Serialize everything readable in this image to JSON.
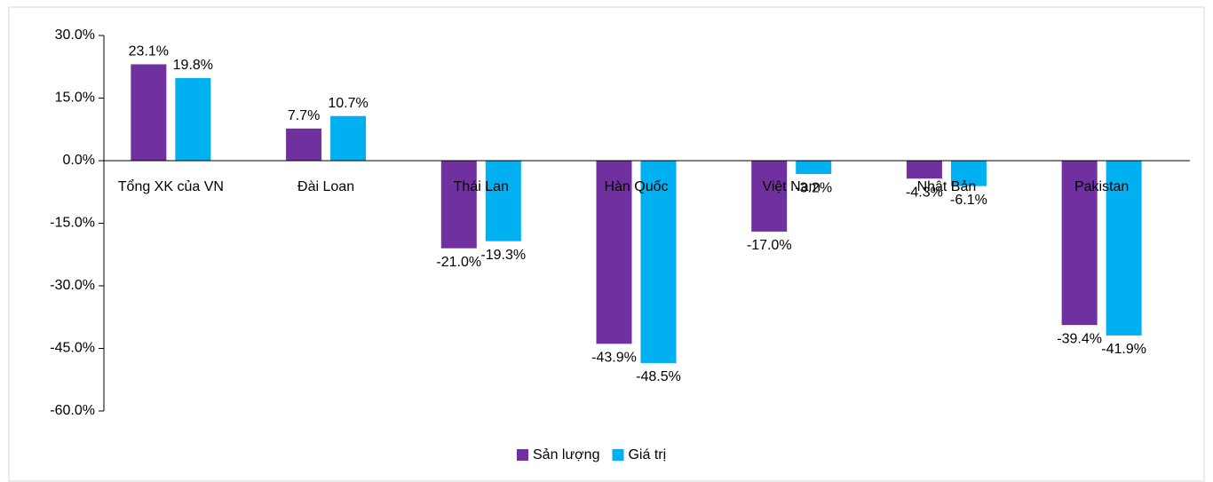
{
  "chart_data": {
    "type": "bar",
    "categories": [
      "Tổng XK của VN",
      "Đài Loan",
      "Thái Lan",
      "Hàn Quốc",
      "Việt Nam",
      "Nhật Bản",
      "Pakistan"
    ],
    "series": [
      {
        "name": "Sản lượng",
        "color": "#7030a0",
        "values": [
          23.1,
          7.7,
          -21.0,
          -43.9,
          -17.0,
          -4.3,
          -39.4
        ],
        "value_labels": [
          "23.1%",
          "7.7%",
          "-21.0%",
          "-43.9%",
          "-17.0%",
          "-4.3%",
          "-39.4%"
        ]
      },
      {
        "name": "Giá trị",
        "color": "#00b0f0",
        "values": [
          19.8,
          10.7,
          -19.3,
          -48.5,
          -3.2,
          -6.1,
          -41.9
        ],
        "value_labels": [
          "19.8%",
          "10.7%",
          "-19.3%",
          "-48.5%",
          "-3.2%",
          "-6.1%",
          "-41.9%"
        ]
      }
    ],
    "ylim": [
      -60,
      30
    ],
    "yticks": [
      {
        "value": 30,
        "label": "30.0%"
      },
      {
        "value": 15,
        "label": "15.0%"
      },
      {
        "value": 0,
        "label": "0.0%"
      },
      {
        "value": -15,
        "label": "-15.0%"
      },
      {
        "value": -30,
        "label": "-30.0%"
      },
      {
        "value": -45,
        "label": "-45.0%"
      },
      {
        "value": -60,
        "label": "-60.0%"
      }
    ],
    "grid": false,
    "legend": "bottom"
  }
}
